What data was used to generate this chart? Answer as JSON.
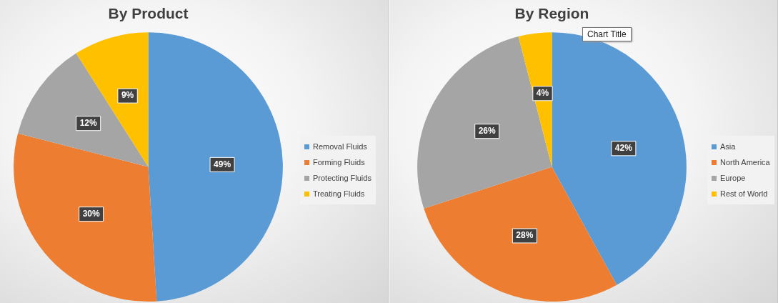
{
  "chart_data": [
    {
      "type": "pie",
      "title": "By Product",
      "categories": [
        "Removal Fluids",
        "Forming Fluids",
        "Protecting Fluids",
        "Treating Fluids"
      ],
      "values": [
        49,
        30,
        12,
        9
      ],
      "value_labels": [
        "49%",
        "30%",
        "12%",
        "9%"
      ],
      "colors": [
        "#5b9bd5",
        "#ed7d31",
        "#a5a5a5",
        "#ffc000"
      ],
      "legend": "right"
    },
    {
      "type": "pie",
      "title": "By Region",
      "categories": [
        "Asia",
        "North America",
        "Europe",
        "Rest of World"
      ],
      "values": [
        42,
        28,
        26,
        4
      ],
      "value_labels": [
        "42%",
        "28%",
        "26%",
        "4%"
      ],
      "colors": [
        "#5b9bd5",
        "#ed7d31",
        "#a5a5a5",
        "#ffc000"
      ],
      "legend": "right",
      "annotations": [
        "Chart Title"
      ]
    }
  ]
}
